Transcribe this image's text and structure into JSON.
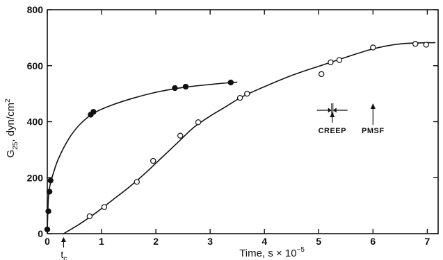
{
  "chart_data": {
    "type": "scatter",
    "xlabel": "Time, s × 10",
    "xlabel_exponent": "−5",
    "ylabel_main": "G",
    "ylabel_sub": "25",
    "ylabel_unit": ", dyn/cm",
    "ylabel_sup": "2",
    "xlim": [
      0,
      7.2
    ],
    "ylim": [
      0,
      800
    ],
    "x_ticks": [
      0,
      1,
      2,
      3,
      4,
      5,
      6,
      7
    ],
    "y_ticks": [
      0,
      200,
      400,
      600,
      800
    ],
    "grid": false,
    "series": [
      {
        "marker": "filled-circle",
        "points": [
          [
            0.0,
            15
          ],
          [
            0.02,
            80
          ],
          [
            0.04,
            150
          ],
          [
            0.06,
            190
          ],
          [
            0.8,
            425
          ],
          [
            0.85,
            435
          ],
          [
            2.35,
            520
          ],
          [
            2.55,
            525
          ],
          [
            3.38,
            540
          ]
        ],
        "curve": [
          [
            0.0,
            0
          ],
          [
            0.01,
            80
          ],
          [
            0.03,
            150
          ],
          [
            0.08,
            195
          ],
          [
            0.2,
            265
          ],
          [
            0.4,
            340
          ],
          [
            0.6,
            390
          ],
          [
            0.85,
            430
          ],
          [
            1.2,
            460
          ],
          [
            1.6,
            485
          ],
          [
            2.0,
            505
          ],
          [
            2.5,
            522
          ],
          [
            3.0,
            533
          ],
          [
            3.4,
            540
          ],
          [
            3.5,
            541
          ]
        ]
      },
      {
        "marker": "open-circle",
        "points": [
          [
            0.78,
            62
          ],
          [
            1.05,
            95
          ],
          [
            1.65,
            185
          ],
          [
            1.95,
            260
          ],
          [
            2.45,
            350
          ],
          [
            2.78,
            398
          ],
          [
            3.55,
            485
          ],
          [
            3.68,
            500
          ],
          [
            5.05,
            570
          ],
          [
            5.22,
            612
          ],
          [
            5.38,
            620
          ],
          [
            6.0,
            665
          ],
          [
            6.78,
            678
          ],
          [
            6.98,
            675
          ]
        ],
        "curve": [
          [
            0.3,
            0
          ],
          [
            0.6,
            35
          ],
          [
            0.9,
            75
          ],
          [
            1.2,
            120
          ],
          [
            1.5,
            165
          ],
          [
            1.8,
            215
          ],
          [
            2.1,
            270
          ],
          [
            2.4,
            325
          ],
          [
            2.7,
            380
          ],
          [
            3.0,
            420
          ],
          [
            3.3,
            455
          ],
          [
            3.6,
            490
          ],
          [
            4.0,
            525
          ],
          [
            4.5,
            565
          ],
          [
            5.0,
            598
          ],
          [
            5.5,
            630
          ],
          [
            6.0,
            660
          ],
          [
            6.5,
            678
          ],
          [
            7.0,
            682
          ],
          [
            7.15,
            682
          ]
        ]
      }
    ],
    "annotations": {
      "tc_label": "t",
      "tc_sub": "c",
      "tc_x": 0.3,
      "creep_label": "CREEP",
      "creep_x": 5.25,
      "pmsf_label": "PMSF",
      "pmsf_x": 6.0
    }
  }
}
